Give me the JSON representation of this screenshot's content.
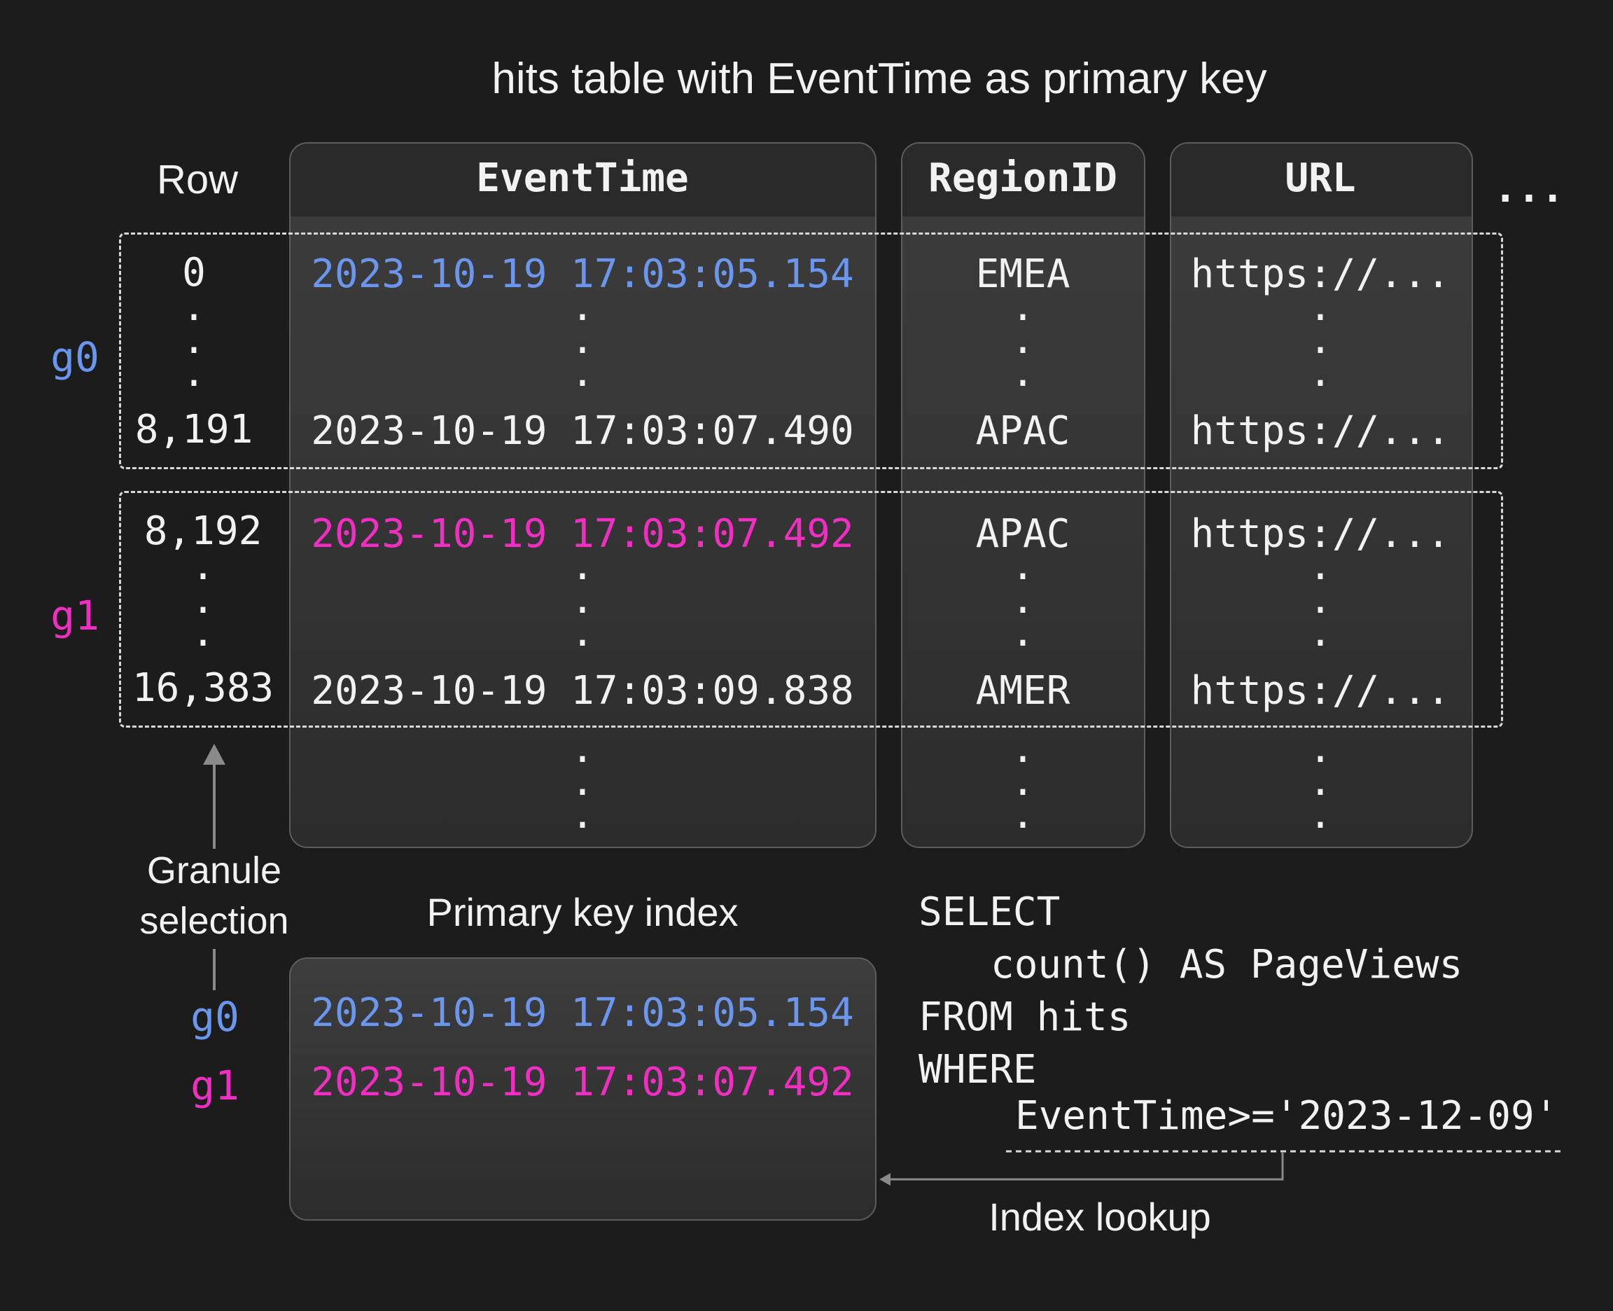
{
  "title": "hits table with EventTime as primary key",
  "colors": {
    "background": "#1c1c1c",
    "granule0": "#6b96ee",
    "granule1": "#f02fc2"
  },
  "table": {
    "row_header": "Row",
    "columns": [
      "EventTime",
      "RegionID",
      "URL"
    ],
    "more_columns": "...",
    "granules": [
      {
        "label": "g0",
        "first_row": "0",
        "last_row": "8,191",
        "first_time": "2023-10-19 17:03:05.154",
        "last_time": "2023-10-19 17:03:07.490",
        "first_region": "EMEA",
        "last_region": "APAC",
        "first_url": "https://...",
        "last_url": "https://..."
      },
      {
        "label": "g1",
        "first_row": "8,192",
        "last_row": "16,383",
        "first_time": "2023-10-19 17:03:07.492",
        "last_time": "2023-10-19 17:03:09.838",
        "first_region": "APAC",
        "last_region": "AMER",
        "first_url": "https://...",
        "last_url": "https://..."
      }
    ],
    "ellipsis_dot": "."
  },
  "granule_selection": "Granule\nselection",
  "index": {
    "title": "Primary key index",
    "entries": [
      {
        "label": "g0",
        "value": "2023-10-19 17:03:05.154"
      },
      {
        "label": "g1",
        "value": "2023-10-19 17:03:07.492"
      }
    ]
  },
  "query": {
    "lines": [
      "SELECT",
      "count() AS PageViews",
      "FROM hits",
      "WHERE",
      "EventTime>='2023-12-09'"
    ]
  },
  "index_lookup": "Index lookup"
}
